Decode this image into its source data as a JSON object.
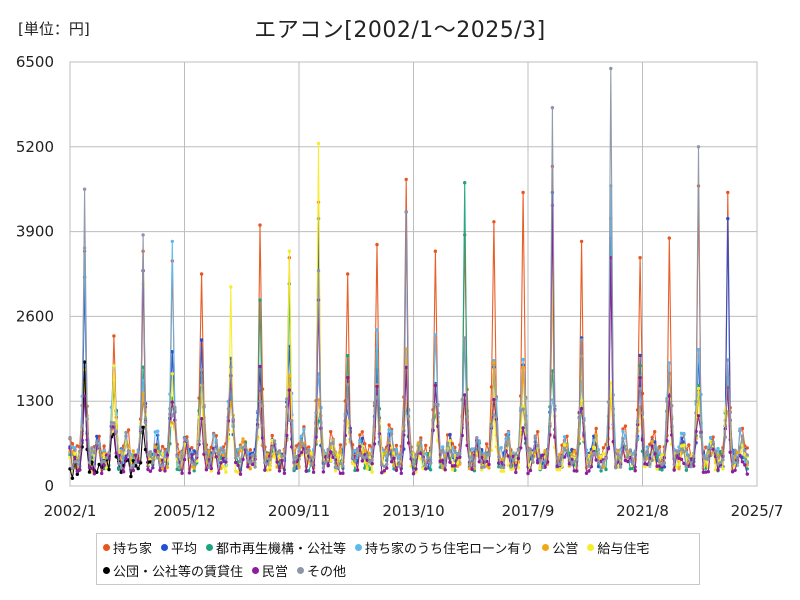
{
  "unit_label": "[単位：円]",
  "chart_data": {
    "type": "line",
    "title": "エアコン[2002/1～2025/3]",
    "xlabel": "",
    "ylabel": "",
    "ylim": [
      0,
      6500
    ],
    "y_ticks": [
      0,
      1300,
      2600,
      3900,
      5200,
      6500
    ],
    "x_range": [
      "2002/1",
      "2025/7"
    ],
    "x_tick_labels": [
      "2002/1",
      "2005/12",
      "2009/11",
      "2013/10",
      "2017/9",
      "2021/8",
      "2025/7"
    ],
    "grid": true,
    "legend_position": "bottom",
    "series": [
      {
        "name": "持ち家",
        "color": "#E8561E",
        "peaks": [
          {
            "x": "2002/7",
            "y": 3600
          },
          {
            "x": "2003/7",
            "y": 2300
          },
          {
            "x": "2004/7",
            "y": 3600
          },
          {
            "x": "2005/7",
            "y": 3450
          },
          {
            "x": "2006/7",
            "y": 3250
          },
          {
            "x": "2008/7",
            "y": 4000
          },
          {
            "x": "2009/7",
            "y": 3500
          },
          {
            "x": "2010/7",
            "y": 4350
          },
          {
            "x": "2011/7",
            "y": 3250
          },
          {
            "x": "2012/7",
            "y": 3700
          },
          {
            "x": "2013/7",
            "y": 4700
          },
          {
            "x": "2014/7",
            "y": 3600
          },
          {
            "x": "2015/7",
            "y": 3850
          },
          {
            "x": "2016/7",
            "y": 4050
          },
          {
            "x": "2017/7",
            "y": 4500
          },
          {
            "x": "2018/7",
            "y": 4900
          },
          {
            "x": "2019/7",
            "y": 3750
          },
          {
            "x": "2020/7",
            "y": 4100
          },
          {
            "x": "2021/7",
            "y": 3500
          },
          {
            "x": "2022/7",
            "y": 3800
          },
          {
            "x": "2023/7",
            "y": 4600
          },
          {
            "x": "2024/7",
            "y": 4500
          }
        ]
      },
      {
        "name": "平均",
        "color": "#1F50D6",
        "peaks": [
          {
            "x": "2002/7",
            "y": 3200
          },
          {
            "x": "2010/7",
            "y": 4100
          },
          {
            "x": "2013/7",
            "y": 4200
          },
          {
            "x": "2018/7",
            "y": 4500
          },
          {
            "x": "2020/7",
            "y": 3800
          },
          {
            "x": "2024/7",
            "y": 4100
          }
        ]
      },
      {
        "name": "都市再生機構・公社等",
        "color": "#1AA57E",
        "peaks": [
          {
            "x": "2008/7",
            "y": 2850
          },
          {
            "x": "2009/7",
            "y": 3100
          },
          {
            "x": "2015/7",
            "y": 4650
          },
          {
            "x": "2020/7",
            "y": 3600
          }
        ]
      },
      {
        "name": "持ち家のうち住宅ローン有り",
        "color": "#5FB8EC",
        "peaks": [
          {
            "x": "2002/7",
            "y": 3650
          },
          {
            "x": "2005/7",
            "y": 3750
          },
          {
            "x": "2020/7",
            "y": 4600
          }
        ]
      },
      {
        "name": "公営",
        "color": "#F0A818",
        "peaks": [
          {
            "x": "2013/7",
            "y": 2100
          },
          {
            "x": "2018/7",
            "y": 3000
          }
        ]
      },
      {
        "name": "給与住宅",
        "color": "#F7EC2A",
        "peaks": [
          {
            "x": "2004/7",
            "y": 3100
          },
          {
            "x": "2007/7",
            "y": 3050
          },
          {
            "x": "2009/7",
            "y": 3600
          },
          {
            "x": "2010/7",
            "y": 5250
          },
          {
            "x": "2018/7",
            "y": 3500
          }
        ]
      },
      {
        "name": "公団・公社等の賃貸住",
        "color": "#000000",
        "peaks": [
          {
            "x": "2002/7",
            "y": 1900
          },
          {
            "x": "2004/7",
            "y": 900
          }
        ]
      },
      {
        "name": "民営",
        "color": "#8A1E9C",
        "peaks": [
          {
            "x": "2004/7",
            "y": 3300
          },
          {
            "x": "2010/7",
            "y": 2850
          },
          {
            "x": "2018/7",
            "y": 4300
          },
          {
            "x": "2020/7",
            "y": 3500
          }
        ]
      },
      {
        "name": "その他",
        "color": "#8C96A8",
        "peaks": [
          {
            "x": "2002/7",
            "y": 4550
          },
          {
            "x": "2004/7",
            "y": 3850
          },
          {
            "x": "2010/7",
            "y": 3300
          },
          {
            "x": "2013/7",
            "y": 4200
          },
          {
            "x": "2018/7",
            "y": 5800
          },
          {
            "x": "2020/7",
            "y": 6400
          },
          {
            "x": "2023/7",
            "y": 5200
          }
        ]
      }
    ]
  }
}
